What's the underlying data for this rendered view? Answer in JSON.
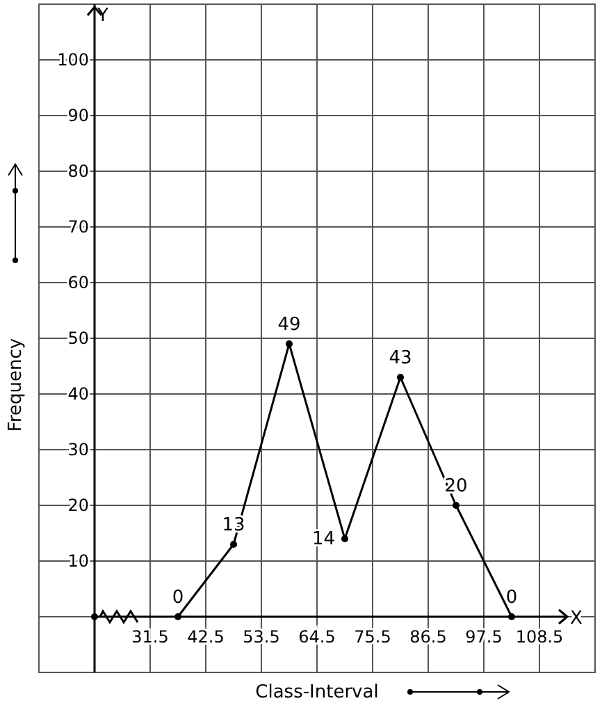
{
  "chart_data": {
    "type": "line",
    "xlabel": "Class-Interval",
    "ylabel": "Frequency",
    "annotations": [
      "Y",
      "X"
    ],
    "x": [
      37,
      48,
      59,
      70,
      81,
      92,
      103
    ],
    "series": [
      {
        "color": "#000000",
        "values": [
          0,
          13,
          49,
          14,
          43,
          20,
          0
        ]
      }
    ],
    "xlim": [
      9.5,
      119.5
    ],
    "ylim": [
      -10,
      110
    ],
    "xticks": [
      31.5,
      42.5,
      53.5,
      64.5,
      75.5,
      86.5,
      97.5,
      108.5
    ],
    "yticks": [
      10,
      20,
      30,
      40,
      50,
      60,
      70,
      80,
      90,
      100
    ],
    "grid": true,
    "marker": "circle",
    "line_style": "solid",
    "data_labels": true
  }
}
